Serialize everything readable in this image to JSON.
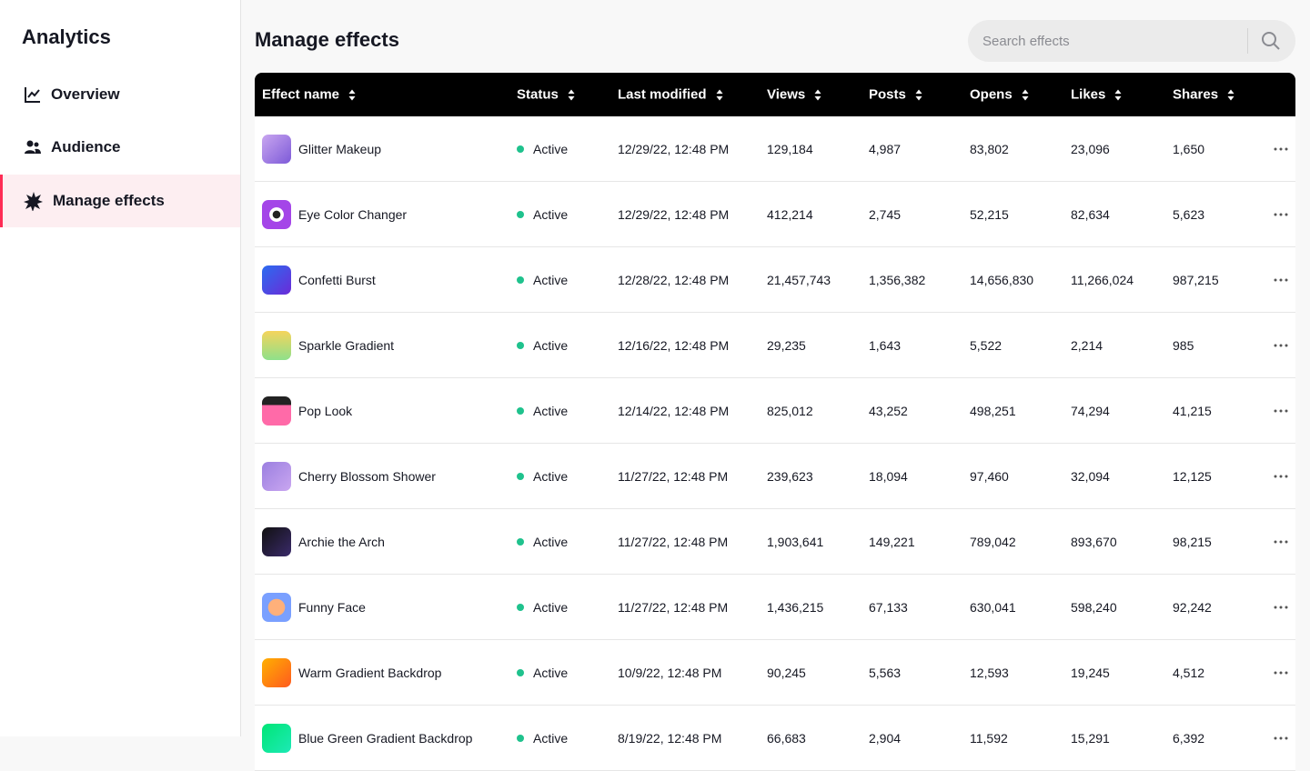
{
  "sidebar": {
    "title": "Analytics",
    "items": [
      "Overview",
      "Audience",
      "Manage effects"
    ]
  },
  "header": {
    "title": "Manage effects",
    "search_placeholder": "Search effects"
  },
  "table": {
    "columns": [
      "Effect name",
      "Status",
      "Last modified",
      "Views",
      "Posts",
      "Opens",
      "Likes",
      "Shares"
    ],
    "rows": [
      [
        "Glitter Makeup",
        "Active",
        "12/29/22, 12:48 PM",
        "129,184",
        "4,987",
        "83,802",
        "23,096",
        "1,650"
      ],
      [
        "Eye Color Changer",
        "Active",
        "12/29/22, 12:48 PM",
        "412,214",
        "2,745",
        "52,215",
        "82,634",
        "5,623"
      ],
      [
        "Confetti Burst",
        "Active",
        "12/28/22, 12:48 PM",
        "21,457,743",
        "1,356,382",
        "14,656,830",
        "11,266,024",
        "987,215"
      ],
      [
        "Sparkle Gradient",
        "Active",
        "12/16/22, 12:48 PM",
        "29,235",
        "1,643",
        "5,522",
        "2,214",
        "985"
      ],
      [
        "Pop Look",
        "Active",
        "12/14/22, 12:48 PM",
        "825,012",
        "43,252",
        "498,251",
        "74,294",
        "41,215"
      ],
      [
        "Cherry Blossom Shower",
        "Active",
        "11/27/22, 12:48 PM",
        "239,623",
        "18,094",
        "97,460",
        "32,094",
        "12,125"
      ],
      [
        "Archie the Arch",
        "Active",
        "11/27/22, 12:48 PM",
        "1,903,641",
        "149,221",
        "789,042",
        "893,670",
        "98,215"
      ],
      [
        "Funny Face",
        "Active",
        "11/27/22, 12:48 PM",
        "1,436,215",
        "67,133",
        "630,041",
        "598,240",
        "92,242"
      ],
      [
        "Warm Gradient Backdrop",
        "Active",
        "10/9/22, 12:48 PM",
        "90,245",
        "5,563",
        "12,593",
        "19,245",
        "4,512"
      ],
      [
        "Blue Green Gradient Backdrop",
        "Active",
        "8/19/22, 12:48 PM",
        "66,683",
        "2,904",
        "11,592",
        "15,291",
        "6,392"
      ]
    ]
  }
}
